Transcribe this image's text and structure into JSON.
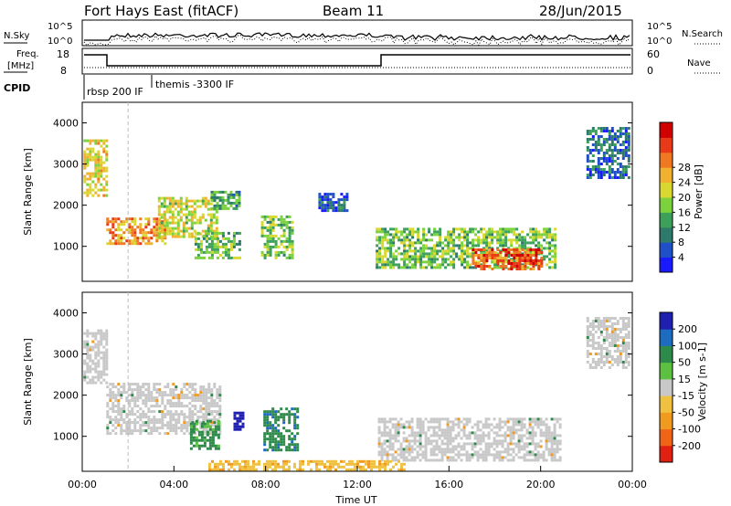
{
  "header": {
    "station": "Fort Hays East (fitACF)",
    "beam": "Beam 11",
    "date": "28/Jun/2015"
  },
  "top_panels": {
    "noise": {
      "left_label": "N.Sky",
      "left_ticks": [
        "10^5",
        "10^0"
      ],
      "right_label": "N.Search",
      "right_ticks": [
        "10^5",
        "10^0"
      ]
    },
    "freq": {
      "left_label_1": "Freq.",
      "left_label_2": "[MHz]",
      "left_ticks": [
        "18",
        "8"
      ],
      "right_label": "Nave",
      "right_ticks": [
        "60",
        "0"
      ]
    },
    "cpid": {
      "label": "CPID",
      "programs": [
        "rbsp 200 IF",
        "themis -3300 IF"
      ]
    }
  },
  "chart_data": [
    {
      "type": "heatmap",
      "name": "power",
      "ylabel": "Slant Range [km]",
      "yticks": [
        1000,
        2000,
        3000,
        4000
      ],
      "ylim": [
        150,
        4500
      ],
      "xlim": [
        0,
        24
      ],
      "colorbar": {
        "label": "Power [dB]",
        "ticks": [
          4,
          8,
          12,
          16,
          20,
          24,
          28
        ],
        "colors": [
          "#1a1aff",
          "#2050c8",
          "#2e7a6a",
          "#3ca05a",
          "#7cd23c",
          "#d8d830",
          "#f0b030",
          "#f07820",
          "#e83a18",
          "#d00000"
        ]
      },
      "patches": [
        {
          "t0": 0.05,
          "t1": 1.1,
          "r0": 2250,
          "r1": 3600,
          "v": 18
        },
        {
          "t0": 1.05,
          "t1": 3.6,
          "r0": 1050,
          "r1": 1700,
          "v": 22
        },
        {
          "t0": 3.3,
          "t1": 5.9,
          "r0": 1250,
          "r1": 2200,
          "v": 17
        },
        {
          "t0": 5.6,
          "t1": 6.9,
          "r0": 1900,
          "r1": 2350,
          "v": 11
        },
        {
          "t0": 4.9,
          "t1": 6.9,
          "r0": 750,
          "r1": 1350,
          "v": 13
        },
        {
          "t0": 7.8,
          "t1": 9.2,
          "r0": 750,
          "r1": 1750,
          "v": 14
        },
        {
          "t0": 12.8,
          "t1": 20.6,
          "r0": 500,
          "r1": 1450,
          "v": 14
        },
        {
          "t0": 17.0,
          "t1": 20.0,
          "r0": 430,
          "r1": 950,
          "v": 26
        },
        {
          "t0": 10.3,
          "t1": 11.5,
          "r0": 1900,
          "r1": 2300,
          "v": 6
        },
        {
          "t0": 22.0,
          "t1": 23.8,
          "r0": 2700,
          "r1": 3900,
          "v": 7
        }
      ]
    },
    {
      "type": "heatmap",
      "name": "velocity",
      "ylabel": "Slant Range [km]",
      "yticks": [
        1000,
        2000,
        3000,
        4000
      ],
      "ylim": [
        150,
        4500
      ],
      "xlim": [
        0,
        24
      ],
      "xticks": [
        "00:00",
        "04:00",
        "08:00",
        "12:00",
        "16:00",
        "20:00",
        "00:00"
      ],
      "xlabel": "Time UT",
      "colorbar": {
        "label": "Velocity [m s-1]",
        "ticks": [
          200,
          100,
          50,
          15,
          -15,
          -50,
          -100,
          -200
        ],
        "colors": [
          "#2020b0",
          "#1e6cc0",
          "#2e8a4a",
          "#5cc040",
          "#c8c8c8",
          "#f0c040",
          "#f09a20",
          "#f06418",
          "#e02010"
        ]
      },
      "patches": [
        {
          "t0": 0.05,
          "t1": 1.1,
          "r0": 2300,
          "r1": 3600,
          "v": 0
        },
        {
          "t0": 1.05,
          "t1": 6.0,
          "r0": 1050,
          "r1": 2300,
          "v": 0
        },
        {
          "t0": 4.7,
          "t1": 6.0,
          "r0": 700,
          "r1": 1400,
          "v": 60
        },
        {
          "t0": 6.6,
          "t1": 7.0,
          "r0": 1200,
          "r1": 1600,
          "v": 220
        },
        {
          "t0": 7.9,
          "t1": 9.4,
          "r0": 650,
          "r1": 1700,
          "v": 90
        },
        {
          "t0": 12.9,
          "t1": 20.8,
          "r0": 450,
          "r1": 1450,
          "v": 0
        },
        {
          "t0": 5.5,
          "t1": 14.0,
          "r0": 180,
          "r1": 420,
          "v": -40
        },
        {
          "t0": 22.0,
          "t1": 23.8,
          "r0": 2700,
          "r1": 3900,
          "v": 0
        }
      ]
    }
  ]
}
